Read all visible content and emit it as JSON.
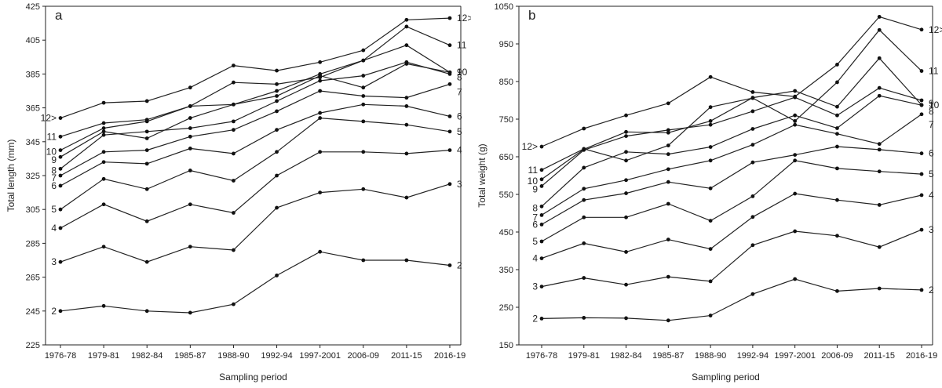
{
  "chart_data": [
    {
      "type": "line",
      "panel_label": "a",
      "xlabel": "Sampling period",
      "ylabel": "Total length (mm)",
      "ylim": [
        225,
        425
      ],
      "yticks": [
        225,
        245,
        265,
        285,
        305,
        325,
        345,
        365,
        385,
        405,
        425
      ],
      "categories": [
        "1976-78",
        "1979-81",
        "1982-84",
        "1985-87",
        "1988-90",
        "1992-94",
        "1997-2001",
        "2006-09",
        "2011-15",
        "2016-19"
      ],
      "grid": false,
      "legend": "none",
      "series": [
        {
          "name": "2",
          "values": [
            245,
            248,
            245,
            244,
            249,
            266,
            280,
            275,
            275,
            272
          ]
        },
        {
          "name": "3",
          "values": [
            274,
            283,
            274,
            283,
            281,
            306,
            315,
            317,
            312,
            320
          ]
        },
        {
          "name": "4",
          "values": [
            294,
            308,
            298,
            308,
            303,
            325,
            339,
            339,
            338,
            340
          ]
        },
        {
          "name": "5",
          "values": [
            305,
            323,
            317,
            328,
            322,
            339,
            359,
            357,
            355,
            351
          ]
        },
        {
          "name": "6",
          "values": [
            319,
            333,
            332,
            341,
            338,
            352,
            362,
            367,
            366,
            360
          ]
        },
        {
          "name": "7",
          "values": [
            325,
            339,
            340,
            348,
            352,
            363,
            375,
            372,
            371,
            379
          ]
        },
        {
          "name": "8",
          "values": [
            329,
            349,
            351,
            353,
            357,
            369,
            381,
            384,
            392,
            385
          ]
        },
        {
          "name": "9",
          "values": [
            336,
            351,
            347,
            359,
            367,
            372,
            384,
            377,
            391,
            386
          ]
        },
        {
          "name": "10",
          "values": [
            340,
            353,
            357,
            366,
            367,
            375,
            385,
            393,
            402,
            386
          ]
        },
        {
          "name": "11",
          "values": [
            348,
            356,
            358,
            366,
            380,
            379,
            383,
            393,
            413,
            402
          ]
        },
        {
          "name": "12>",
          "values": [
            359,
            368,
            369,
            377,
            390,
            387,
            392,
            399,
            417,
            418
          ]
        }
      ]
    },
    {
      "type": "line",
      "panel_label": "b",
      "xlabel": "Sampling period",
      "ylabel": "Total weight (g)",
      "ylim": [
        150,
        1050
      ],
      "yticks": [
        150,
        250,
        350,
        450,
        550,
        650,
        750,
        850,
        950,
        1050
      ],
      "categories": [
        "1976-78",
        "1979-81",
        "1982-84",
        "1985-87",
        "1988-90",
        "1992-94",
        "1997-2001",
        "2006-09",
        "2011-15",
        "2016-19"
      ],
      "grid": false,
      "legend": "none",
      "series": [
        {
          "name": "2",
          "values": [
            220,
            222,
            221,
            215,
            228,
            285,
            325,
            293,
            300,
            296
          ]
        },
        {
          "name": "3",
          "values": [
            305,
            328,
            310,
            331,
            319,
            415,
            452,
            440,
            410,
            456
          ]
        },
        {
          "name": "4",
          "values": [
            380,
            420,
            397,
            430,
            405,
            490,
            552,
            535,
            522,
            548
          ]
        },
        {
          "name": "5",
          "values": [
            425,
            489,
            489,
            525,
            480,
            545,
            640,
            619,
            611,
            604
          ]
        },
        {
          "name": "6",
          "values": [
            470,
            535,
            553,
            583,
            566,
            635,
            655,
            677,
            669,
            659
          ]
        },
        {
          "name": "7",
          "values": [
            495,
            565,
            588,
            617,
            640,
            682,
            735,
            711,
            684,
            763
          ]
        },
        {
          "name": "8",
          "values": [
            518,
            621,
            663,
            657,
            676,
            724,
            760,
            726,
            812,
            787
          ]
        },
        {
          "name": "9",
          "values": [
            572,
            668,
            705,
            721,
            735,
            771,
            808,
            760,
            833,
            800
          ]
        },
        {
          "name": "10",
          "values": [
            590,
            670,
            716,
            714,
            745,
            807,
            825,
            783,
            912,
            788
          ]
        },
        {
          "name": "11",
          "values": [
            615,
            671,
            640,
            680,
            782,
            806,
            745,
            848,
            987,
            878
          ]
        },
        {
          "name": "12>",
          "values": [
            677,
            725,
            760,
            792,
            862,
            822,
            810,
            895,
            1022,
            988
          ]
        }
      ]
    }
  ]
}
